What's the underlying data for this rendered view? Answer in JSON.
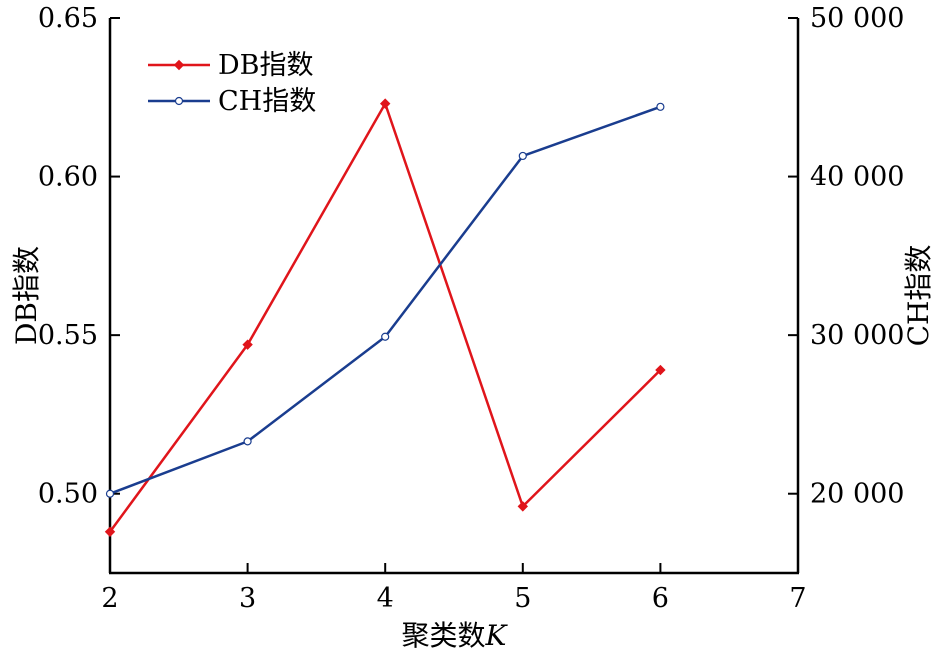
{
  "chart_data": {
    "type": "line",
    "xlabel": "聚类数",
    "xlabel_var": "K",
    "ylabel_left": "DB指数",
    "ylabel_right": "CH指数",
    "xlim": [
      2,
      7
    ],
    "ylim_left": [
      0.475,
      0.65
    ],
    "ylim_right": [
      15000,
      50000
    ],
    "x_ticks": [
      2,
      3,
      4,
      5,
      6,
      7
    ],
    "x_tick_labels": [
      "2",
      "3",
      "4",
      "5",
      "6",
      "7"
    ],
    "y_left_ticks": [
      0.5,
      0.55,
      0.6,
      0.65
    ],
    "y_left_tick_labels": [
      "0.50",
      "0.55",
      "0.60",
      "0.65"
    ],
    "y_right_ticks": [
      20000,
      30000,
      40000,
      50000
    ],
    "y_right_tick_labels": [
      "20 000",
      "30 000",
      "40 000",
      "50 000"
    ],
    "legend_position": "top-left",
    "grid": false,
    "series": [
      {
        "name": "DB指数",
        "axis": "left",
        "color": "#e0151b",
        "marker": "diamond",
        "x": [
          2,
          3,
          4,
          5,
          6
        ],
        "y": [
          0.488,
          0.547,
          0.623,
          0.496,
          0.539
        ]
      },
      {
        "name": "CH指数",
        "axis": "right",
        "color": "#1a3d8f",
        "marker": "circle",
        "x": [
          2,
          3,
          4,
          5,
          6
        ],
        "y": [
          20000,
          23300,
          29900,
          41300,
          44400
        ]
      }
    ]
  }
}
